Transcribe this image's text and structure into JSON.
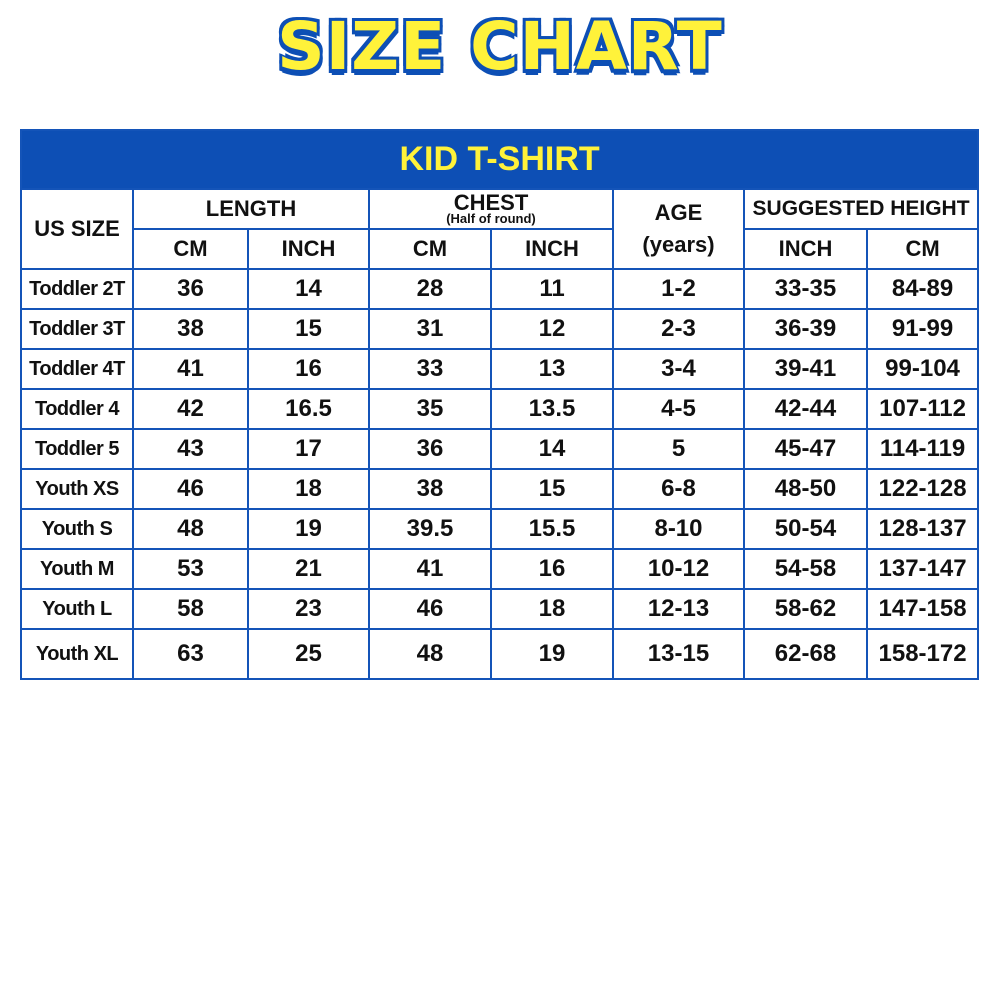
{
  "title": "SIZE CHART",
  "banner": "KID T-SHIRT",
  "colors": {
    "blue": "#0d4fb5",
    "yellow": "#fff23a"
  },
  "headers": {
    "us_size": "US SIZE",
    "length": "LENGTH",
    "chest": "CHEST",
    "chest_note": "(Half of round)",
    "age": "AGE",
    "age_unit": "(years)",
    "height": "SUGGESTED HEIGHT",
    "length_cm": "CM",
    "length_inch": "INCH",
    "chest_cm": "CM",
    "chest_inch": "INCH",
    "height_inch": "INCH",
    "height_cm": "CM"
  },
  "rows": [
    [
      "Toddler 2T",
      "36",
      "14",
      "28",
      "11",
      "1-2",
      "33-35",
      "84-89"
    ],
    [
      "Toddler 3T",
      "38",
      "15",
      "31",
      "12",
      "2-3",
      "36-39",
      "91-99"
    ],
    [
      "Toddler 4T",
      "41",
      "16",
      "33",
      "13",
      "3-4",
      "39-41",
      "99-104"
    ],
    [
      "Toddler 4",
      "42",
      "16.5",
      "35",
      "13.5",
      "4-5",
      "42-44",
      "107-112"
    ],
    [
      "Toddler 5",
      "43",
      "17",
      "36",
      "14",
      "5",
      "45-47",
      "114-119"
    ],
    [
      "Youth XS",
      "46",
      "18",
      "38",
      "15",
      "6-8",
      "48-50",
      "122-128"
    ],
    [
      "Youth S",
      "48",
      "19",
      "39.5",
      "15.5",
      "8-10",
      "50-54",
      "128-137"
    ],
    [
      "Youth M",
      "53",
      "21",
      "41",
      "16",
      "10-12",
      "54-58",
      "137-147"
    ],
    [
      "Youth L",
      "58",
      "23",
      "46",
      "18",
      "12-13",
      "58-62",
      "147-158"
    ],
    [
      "Youth XL",
      "63",
      "25",
      "48",
      "19",
      "13-15",
      "62-68",
      "158-172"
    ]
  ]
}
